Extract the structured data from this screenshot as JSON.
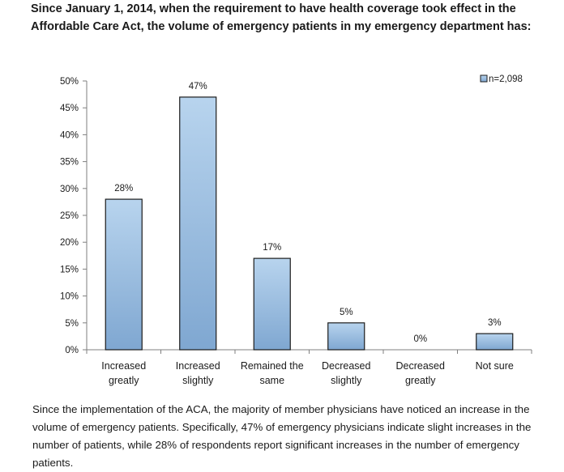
{
  "header": {
    "title_line1": "Since January 1, 2014, when the requirement to have health coverage took effect in the",
    "title_line2": "Affordable Care Act, the volume of emergency patients in my emergency department has:"
  },
  "chart_data": {
    "type": "bar",
    "categories": [
      [
        "Increased",
        "greatly"
      ],
      [
        "Increased",
        "slightly"
      ],
      [
        "Remained the",
        "same"
      ],
      [
        "Decreased",
        "slightly"
      ],
      [
        "Decreased",
        "greatly"
      ],
      [
        "Not sure"
      ]
    ],
    "series": [
      {
        "name": "n=2,098",
        "values": [
          28,
          47,
          17,
          5,
          0,
          3
        ],
        "labels": [
          "28%",
          "47%",
          "17%",
          "5%",
          "0%",
          "3%"
        ]
      }
    ],
    "ylim": [
      0,
      50
    ],
    "yticks": [
      "0%",
      "5%",
      "10%",
      "15%",
      "20%",
      "25%",
      "30%",
      "35%",
      "40%",
      "45%",
      "50%"
    ],
    "legend_position": "top-right",
    "grid": false,
    "colors": {
      "bar_top": "#b8d4ee",
      "bar_bottom": "#7fa7d1",
      "bar_stroke": "#1c1c1c",
      "axis": "#7f7f7f"
    }
  },
  "footer": {
    "line1": "Since the implementation of the ACA, the majority of member physicians have noticed an increase in the",
    "line2": "volume of emergency patients. Specifically, 47% of emergency physicians indicate slight increases in the",
    "line3": "number of patients, while 28% of respondents report significant increases in the number of emergency",
    "line4": "patients."
  }
}
